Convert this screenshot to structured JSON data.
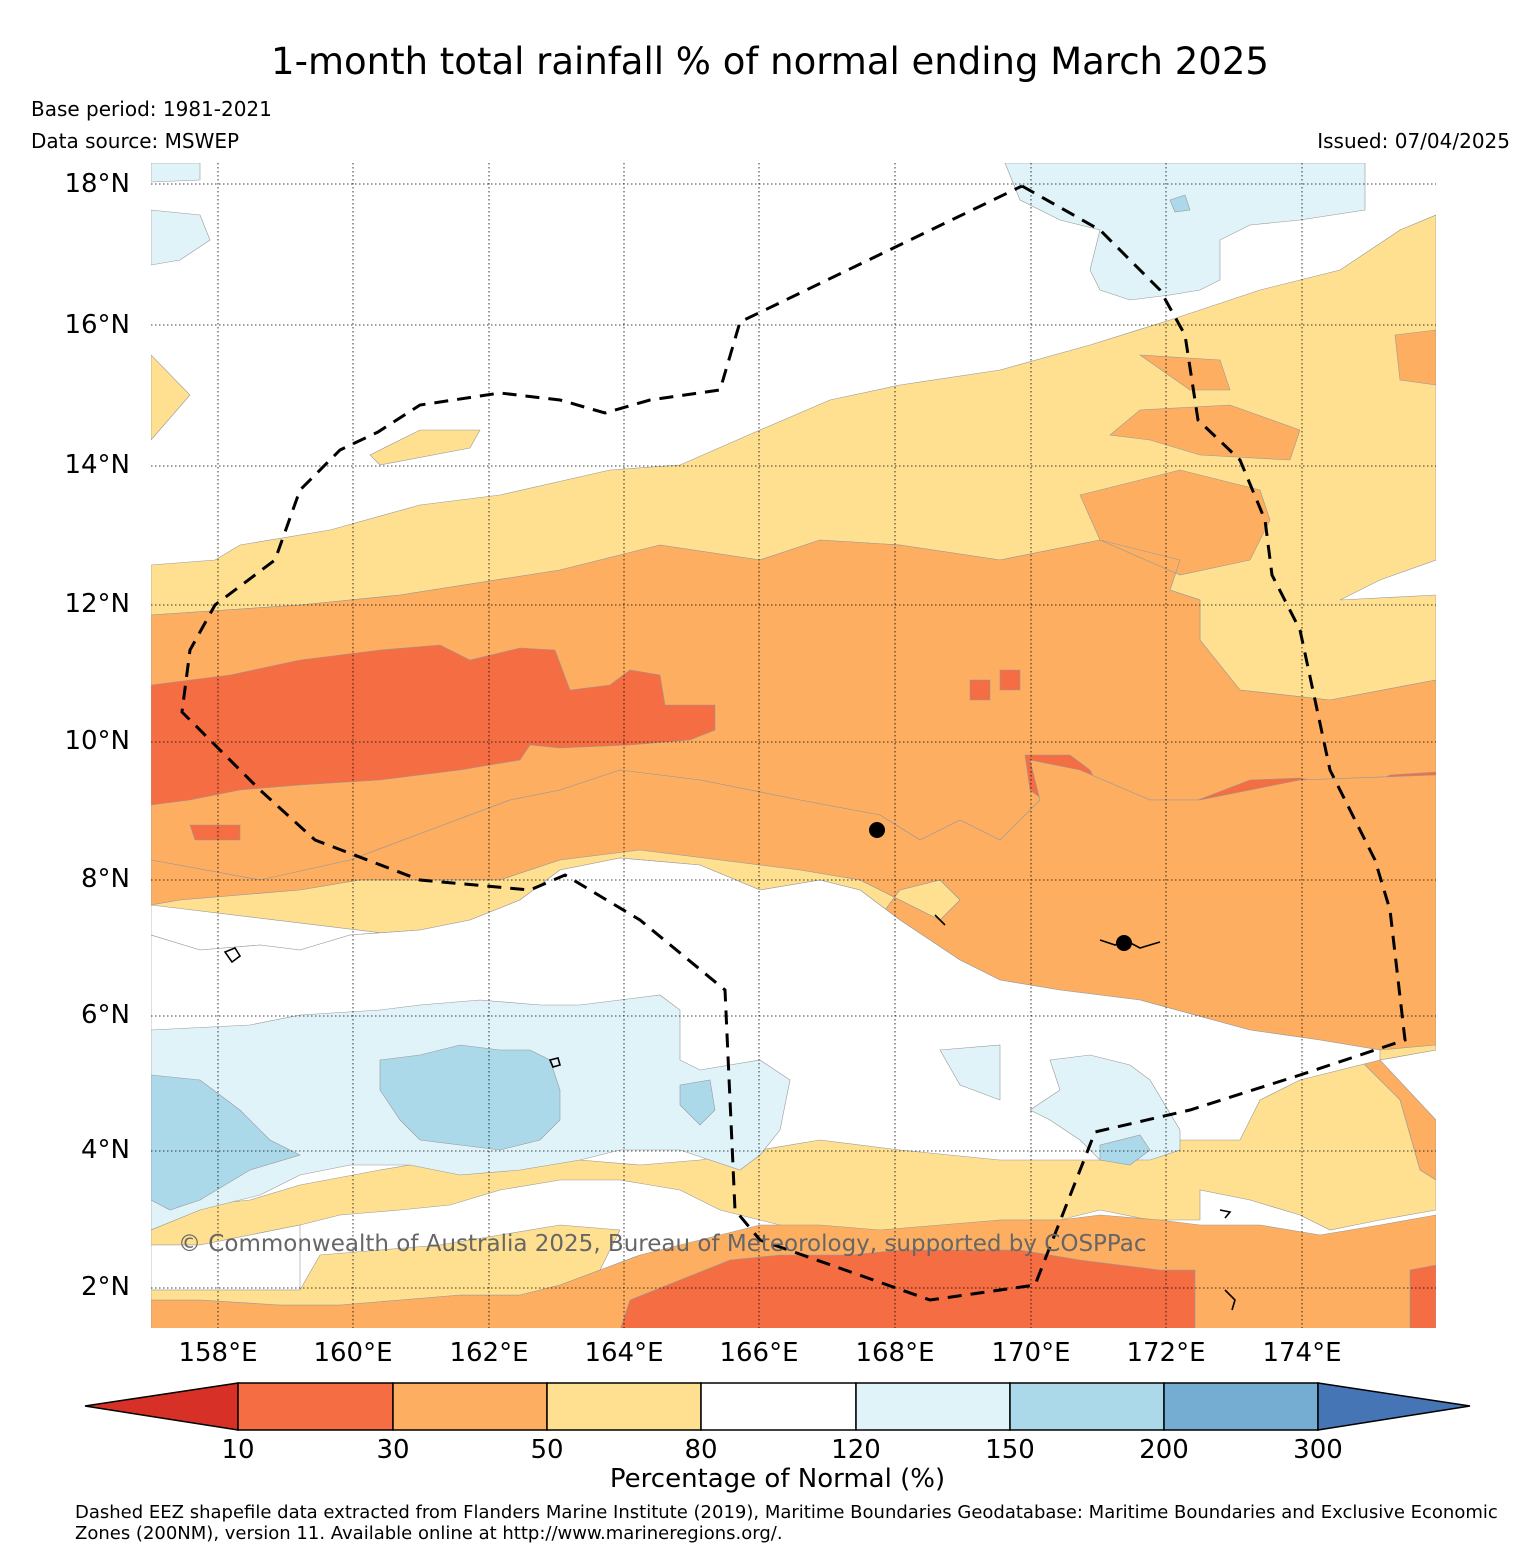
{
  "title": "1-month total rainfall % of normal ending March 2025",
  "base_period": "Base period: 1981-2021",
  "data_source": "Data source: MSWEP",
  "issued": "Issued: 07/04/2025",
  "watermark": "© Commonwealth of Australia 2025, Bureau of Meteorology, supported by COSPPac",
  "lat_labels": [
    "18°N",
    "16°N",
    "14°N",
    "12°N",
    "10°N",
    "8°N",
    "6°N",
    "4°N",
    "2°N"
  ],
  "lon_labels": [
    "158°E",
    "160°E",
    "162°E",
    "164°E",
    "166°E",
    "168°E",
    "170°E",
    "172°E",
    "174°E"
  ],
  "colorbar": {
    "label": "Percentage of Normal (%)",
    "ticks": [
      "10",
      "30",
      "50",
      "80",
      "120",
      "150",
      "200",
      "300"
    ],
    "colors": [
      "#d73027",
      "#f46d43",
      "#fdae61",
      "#fee090",
      "#ffffff",
      "#e0f3f8",
      "#abd9e9",
      "#74add1",
      "#4575b4"
    ]
  },
  "footer": "Dashed EEZ shapefile data extracted from Flanders Marine Institute (2019), Maritime Boundaries Geodatabase: Maritime Boundaries and Exclusive Economic Zones (200NM), version 11. Available online at http://www.marineregions.org/."
}
